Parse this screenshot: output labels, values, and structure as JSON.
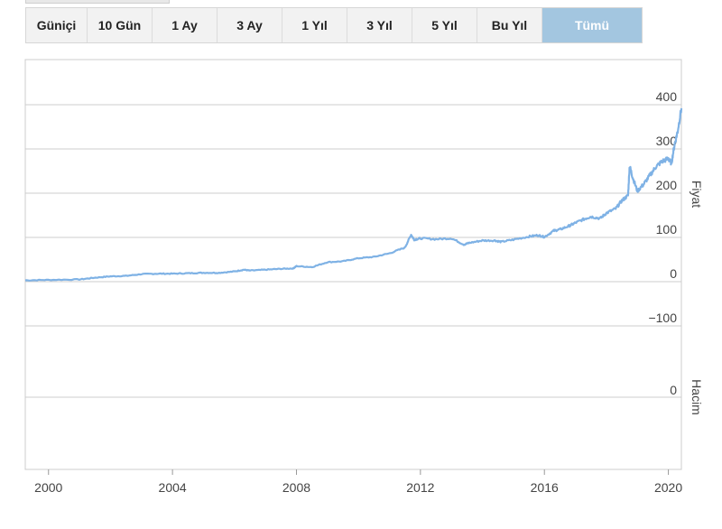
{
  "range_buttons": [
    {
      "label": "Güniçi",
      "active": false
    },
    {
      "label": "10 Gün",
      "active": false
    },
    {
      "label": "1 Ay",
      "active": false
    },
    {
      "label": "3 Ay",
      "active": false
    },
    {
      "label": "1 Yıl",
      "active": false
    },
    {
      "label": "3 Yıl",
      "active": false
    },
    {
      "label": "5 Yıl",
      "active": false
    },
    {
      "label": "Bu Yıl",
      "active": false
    },
    {
      "label": "Tümü",
      "active": true
    }
  ],
  "colors": {
    "line": "#7fb2e5",
    "grid": "#cccccc",
    "active_button": "#a3c6e0"
  },
  "chart_data": {
    "type": "line",
    "price_axis_title": "Fiyat",
    "volume_axis_title": "Hacim",
    "price_ticks": [
      "400",
      "300",
      "200",
      "100",
      "0",
      "−100"
    ],
    "volume_ticks": [
      "0"
    ],
    "x_ticks": [
      "2000",
      "2004",
      "2008",
      "2012",
      "2016",
      "2020"
    ],
    "xlim": [
      1999.25,
      2020.42
    ],
    "ylim": [
      -100,
      400
    ],
    "grid": true,
    "series": [
      {
        "x": [
          1999.25,
          2000.0,
          2001.0,
          2001.5,
          2002.0,
          2002.5,
          2003.0,
          2003.5,
          2004.0,
          2004.5,
          2005.0,
          2005.5,
          2006.0,
          2006.3,
          2006.5,
          2007.0,
          2007.5,
          2007.9,
          2008.0,
          2008.5,
          2009.0,
          2009.5,
          2010.0,
          2010.5,
          2011.0,
          2011.5,
          2011.7,
          2011.8,
          2012.0,
          2012.5,
          2013.0,
          2013.4,
          2013.6,
          2014.0,
          2014.4,
          2014.6,
          2015.0,
          2015.5,
          2015.8,
          2016.0,
          2016.3,
          2016.5,
          2016.8,
          2017.0,
          2017.3,
          2017.5,
          2017.8,
          2018.0,
          2018.3,
          2018.5,
          2018.7,
          2018.75,
          2018.85,
          2019.0,
          2019.2,
          2019.4,
          2019.6,
          2019.8,
          2020.0,
          2020.1,
          2020.2,
          2020.3,
          2020.42
        ],
        "y": [
          3,
          4,
          5,
          9,
          12,
          13,
          17,
          18,
          18,
          19,
          20,
          20,
          23,
          27,
          25,
          27,
          29,
          30,
          35,
          33,
          44,
          46,
          53,
          56,
          64,
          77,
          106,
          95,
          98,
          96,
          98,
          84,
          88,
          93,
          93,
          90,
          95,
          102,
          105,
          101,
          115,
          118,
          126,
          133,
          142,
          147,
          143,
          155,
          165,
          183,
          195,
          262,
          235,
          205,
          220,
          240,
          260,
          272,
          278,
          268,
          310,
          340,
          392
        ]
      }
    ]
  }
}
